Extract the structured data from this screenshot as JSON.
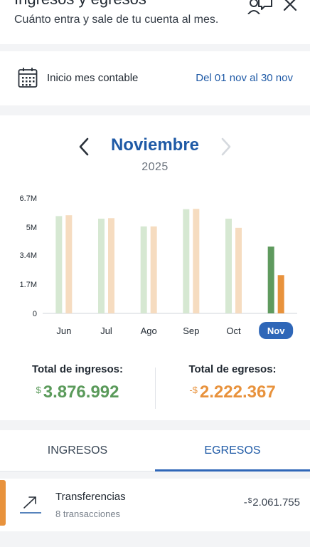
{
  "header": {
    "title": "Ingresos y egresos",
    "subtitle": "Cuánto entra y sale de tu cuenta al mes."
  },
  "period": {
    "label": "Inicio mes contable",
    "range": "Del 01 nov al 30 nov"
  },
  "month_nav": {
    "month": "Noviembre",
    "year": "2025"
  },
  "chart_data": {
    "type": "bar",
    "categories": [
      "Jun",
      "Jul",
      "Ago",
      "Sep",
      "Oct",
      "Nov"
    ],
    "selected": "Nov",
    "y_ticks": [
      "0",
      "1.7M",
      "3.4M",
      "5M",
      "6.7M"
    ],
    "ylim": [
      0,
      6700000
    ],
    "series": [
      {
        "values": [
          5650000,
          5500000,
          5050000,
          6050000,
          5500000,
          3876992
        ],
        "color": "#d6e8d2",
        "active_color": "#5f9a5e"
      },
      {
        "values": [
          5700000,
          5530000,
          5050000,
          6070000,
          4970000,
          2222367
        ],
        "color": "#f6dcc0",
        "active_color": "#e8923c"
      }
    ]
  },
  "totals": {
    "income_label": "Total de ingresos:",
    "income_currency": "$",
    "income_value": "3.876.992",
    "expense_label": "Total de egresos:",
    "expense_currency": "-$",
    "expense_value": "2.222.367"
  },
  "tabs": {
    "income": "INGRESOS",
    "expense": "EGRESOS",
    "active": "EGRESOS"
  },
  "transactions": {
    "items": [
      {
        "name": "Transferencias",
        "count": "8 transacciones",
        "sign": "-",
        "currency": "$",
        "amount": "2.061.755",
        "icon": "trend-up-icon"
      }
    ]
  },
  "colors": {
    "brand_blue": "#1f5aa6",
    "income_green": "#5a9a5a",
    "expense_orange": "#e8923c"
  }
}
